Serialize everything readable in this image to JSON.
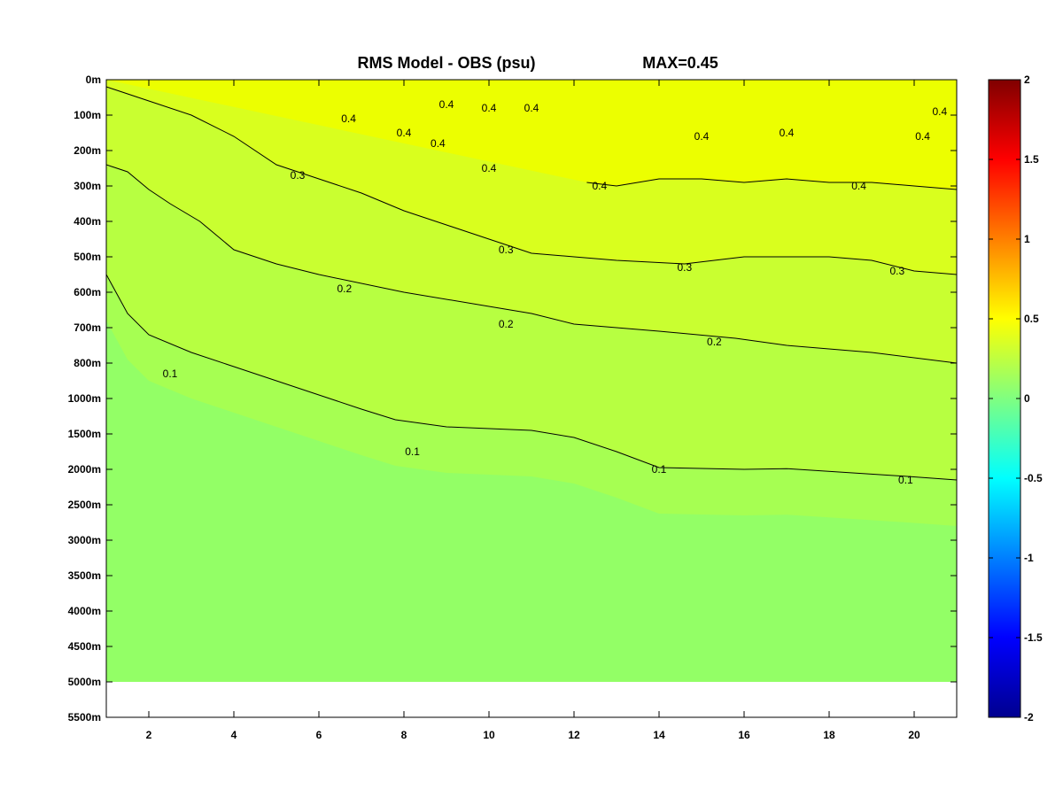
{
  "chart_data": {
    "type": "heatmap",
    "title": "RMS Model - OBS (psu)",
    "subtitle": "MAX=0.45",
    "x_ticks": [
      2,
      4,
      6,
      8,
      10,
      12,
      14,
      16,
      18,
      20
    ],
    "xlim": [
      1,
      21
    ],
    "y_ticks": [
      "0m",
      "100m",
      "200m",
      "300m",
      "400m",
      "500m",
      "600m",
      "700m",
      "800m",
      "1000m",
      "1500m",
      "2000m",
      "2500m",
      "3000m",
      "3500m",
      "4000m",
      "4500m",
      "5000m",
      "5500m"
    ],
    "data_bottom_depth_level": "5000m",
    "colorbar": {
      "min": -2,
      "max": 2,
      "colormap": "jet",
      "ticks": [
        "2",
        "1.5",
        "1",
        "0.5",
        "0",
        "-0.5",
        "-1",
        "-1.5",
        "-2"
      ]
    },
    "contours": [
      {
        "level": 0.1,
        "label": "0.1",
        "label_positions": [
          [
            2.5,
            8.3
          ],
          [
            8.2,
            10.5
          ],
          [
            14,
            11.0
          ],
          [
            19.8,
            11.3
          ]
        ],
        "points": [
          [
            1,
            5.5
          ],
          [
            1.5,
            6.6
          ],
          [
            2,
            7.2
          ],
          [
            3,
            7.7
          ],
          [
            4,
            8.1
          ],
          [
            5,
            8.5
          ],
          [
            6,
            8.9
          ],
          [
            7,
            9.3
          ],
          [
            7.8,
            9.6
          ],
          [
            9,
            9.8
          ],
          [
            11,
            9.9
          ],
          [
            12,
            10.1
          ],
          [
            13,
            10.5
          ],
          [
            14,
            10.95
          ],
          [
            16,
            11.0
          ],
          [
            17,
            10.98
          ],
          [
            19.6,
            11.18
          ],
          [
            21,
            11.3
          ]
        ]
      },
      {
        "level": 0.2,
        "label": "0.2",
        "label_positions": [
          [
            6.6,
            5.9
          ],
          [
            10.4,
            6.9
          ],
          [
            15.3,
            7.4
          ]
        ],
        "points": [
          [
            1,
            2.4
          ],
          [
            1.5,
            2.6
          ],
          [
            2,
            3.1
          ],
          [
            2.5,
            3.5
          ],
          [
            3.2,
            4.0
          ],
          [
            4,
            4.8
          ],
          [
            5,
            5.2
          ],
          [
            6,
            5.5
          ],
          [
            8,
            6.0
          ],
          [
            10,
            6.4
          ],
          [
            11,
            6.6
          ],
          [
            12,
            6.9
          ],
          [
            14,
            7.1
          ],
          [
            15.8,
            7.3
          ],
          [
            17,
            7.5
          ],
          [
            19,
            7.7
          ],
          [
            21,
            8.0
          ]
        ]
      },
      {
        "level": 0.3,
        "label": "0.3",
        "label_positions": [
          [
            5.5,
            2.7
          ],
          [
            10.4,
            4.8
          ],
          [
            14.6,
            5.3
          ],
          [
            19.6,
            5.4
          ]
        ],
        "points": [
          [
            1,
            0.2
          ],
          [
            2,
            0.6
          ],
          [
            3,
            1.0
          ],
          [
            4,
            1.6
          ],
          [
            5,
            2.4
          ],
          [
            6,
            2.8
          ],
          [
            7,
            3.2
          ],
          [
            8,
            3.7
          ],
          [
            9,
            4.1
          ],
          [
            10,
            4.5
          ],
          [
            11,
            4.9
          ],
          [
            12,
            5.0
          ],
          [
            13,
            5.1
          ],
          [
            14.6,
            5.2
          ],
          [
            16,
            5.0
          ],
          [
            17,
            5.0
          ],
          [
            18,
            5.0
          ],
          [
            19,
            5.1
          ],
          [
            20,
            5.4
          ],
          [
            21,
            5.5
          ]
        ]
      },
      {
        "level": 0.4,
        "label": "0.4",
        "label_positions": [
          [
            6.7,
            1.1
          ],
          [
            8,
            1.5
          ],
          [
            10,
            2.5
          ],
          [
            12.6,
            3.0
          ],
          [
            15,
            1.6
          ],
          [
            17,
            1.5
          ],
          [
            18.7,
            3.0
          ],
          [
            20.2,
            1.6
          ],
          [
            20.6,
            0.9
          ],
          [
            10,
            0.8
          ],
          [
            11,
            0.8
          ],
          [
            9,
            0.7
          ],
          [
            8.8,
            1.8
          ]
        ],
        "points": [
          [
            12.3,
            2.9
          ],
          [
            13,
            3.0
          ],
          [
            14,
            2.8
          ],
          [
            15,
            2.8
          ],
          [
            16,
            2.9
          ],
          [
            17,
            2.8
          ],
          [
            18,
            2.9
          ],
          [
            19,
            2.9
          ],
          [
            20,
            3.0
          ],
          [
            21,
            3.1
          ]
        ]
      }
    ],
    "color_field": [
      {
        "value": 0.4,
        "color": "#ecff00"
      },
      {
        "value": 0.35,
        "color": "#d9ff1e"
      },
      {
        "value": 0.3,
        "color": "#c9ff30"
      },
      {
        "value": 0.2,
        "color": "#b7ff41"
      },
      {
        "value": 0.1,
        "color": "#a6ff52"
      },
      {
        "value": 0.05,
        "color": "#93ff66"
      }
    ]
  }
}
